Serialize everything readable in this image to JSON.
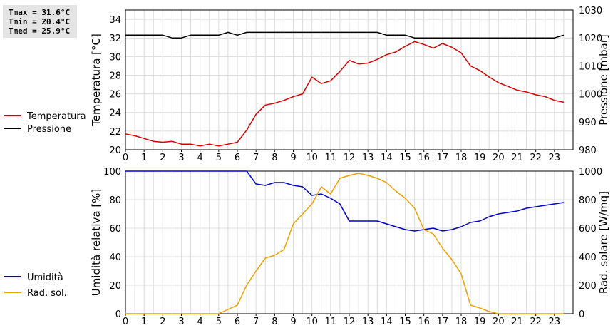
{
  "stats": {
    "tmax": "Tmax = 31.6°C",
    "tmin": "Tmin = 20.4°C",
    "tmed": "Tmed = 25.9°C"
  },
  "chart_data": [
    {
      "type": "line",
      "xlim": [
        0,
        24
      ],
      "x_ticks": [
        "0",
        "1",
        "2",
        "3",
        "4",
        "5",
        "6",
        "7",
        "8",
        "9",
        "10",
        "11",
        "12",
        "13",
        "14",
        "15",
        "16",
        "17",
        "18",
        "19",
        "20",
        "21",
        "22",
        "23"
      ],
      "ylabel": "Temperatura [°C]",
      "ylim": [
        20,
        35
      ],
      "y_ticks": [
        20,
        22,
        24,
        26,
        28,
        30,
        32,
        34
      ],
      "y2label": "Pressione [mbar]",
      "y2lim": [
        980,
        1030
      ],
      "y2_ticks": [
        980,
        990,
        1000,
        1010,
        1020,
        1030
      ],
      "grid": true,
      "legend_position": "left-outside",
      "series": [
        {
          "name": "Temperatura",
          "color": "#d40000",
          "axis": "left",
          "x": [
            0,
            0.5,
            1,
            1.5,
            2,
            2.5,
            3,
            3.5,
            4,
            4.5,
            5,
            5.5,
            6,
            6.5,
            7,
            7.5,
            8,
            8.5,
            9,
            9.5,
            10,
            10.5,
            11,
            11.5,
            12,
            12.5,
            13,
            13.5,
            14,
            14.5,
            15,
            15.5,
            16,
            16.5,
            17,
            17.5,
            18,
            18.5,
            19,
            19.5,
            20,
            20.5,
            21,
            21.5,
            22,
            22.5,
            23,
            23.5
          ],
          "values": [
            21.7,
            21.5,
            21.2,
            20.9,
            20.8,
            20.9,
            20.6,
            20.6,
            20.4,
            20.6,
            20.4,
            20.6,
            20.8,
            22.1,
            23.8,
            24.8,
            25.0,
            25.3,
            25.7,
            26.0,
            27.8,
            27.1,
            27.4,
            28.4,
            29.6,
            29.2,
            29.3,
            29.7,
            30.2,
            30.5,
            31.1,
            31.6,
            31.3,
            30.9,
            31.4,
            31.0,
            30.4,
            29.0,
            28.5,
            27.8,
            27.2,
            26.8,
            26.4,
            26.2,
            25.9,
            25.7,
            25.3,
            25.1
          ]
        },
        {
          "name": "Pressione",
          "color": "#000000",
          "axis": "right",
          "x": [
            0,
            0.5,
            1,
            1.5,
            2,
            2.5,
            3,
            3.5,
            4,
            4.5,
            5,
            5.5,
            6,
            6.5,
            7,
            7.5,
            8,
            8.5,
            9,
            9.5,
            10,
            10.5,
            11,
            11.5,
            12,
            12.5,
            13,
            13.5,
            14,
            14.5,
            15,
            15.5,
            16,
            16.5,
            17,
            17.5,
            18,
            18.5,
            19,
            19.5,
            20,
            20.5,
            21,
            21.5,
            22,
            22.5,
            23,
            23.5
          ],
          "values": [
            1021,
            1021,
            1021,
            1021,
            1021,
            1020,
            1020,
            1021,
            1021,
            1021,
            1021,
            1022,
            1021,
            1022,
            1022,
            1022,
            1022,
            1022,
            1022,
            1022,
            1022,
            1022,
            1022,
            1022,
            1022,
            1022,
            1022,
            1022,
            1021,
            1021,
            1021,
            1020,
            1020,
            1020,
            1020,
            1020,
            1020,
            1020,
            1020,
            1020,
            1020,
            1020,
            1020,
            1020,
            1020,
            1020,
            1020,
            1021
          ]
        }
      ]
    },
    {
      "type": "line",
      "xlim": [
        0,
        24
      ],
      "x_ticks": [
        "0",
        "1",
        "2",
        "3",
        "4",
        "5",
        "6",
        "7",
        "8",
        "9",
        "10",
        "11",
        "12",
        "13",
        "14",
        "15",
        "16",
        "17",
        "18",
        "19",
        "20",
        "21",
        "22",
        "23"
      ],
      "ylabel": "Umidità relativa [%]",
      "ylim": [
        0,
        100
      ],
      "y_ticks": [
        0,
        20,
        40,
        60,
        80,
        100
      ],
      "y2label": "Rad. solare [W/mq]",
      "y2lim": [
        0,
        1000
      ],
      "y2_ticks": [
        0,
        200,
        400,
        600,
        800,
        1000
      ],
      "grid": true,
      "legend_position": "left-outside",
      "series": [
        {
          "name": "Umidità",
          "color": "#0000c8",
          "axis": "left",
          "x": [
            0,
            0.5,
            1,
            1.5,
            2,
            2.5,
            3,
            3.5,
            4,
            4.5,
            5,
            5.5,
            6,
            6.5,
            7,
            7.5,
            8,
            8.5,
            9,
            9.5,
            10,
            10.5,
            11,
            11.5,
            12,
            12.5,
            13,
            13.5,
            14,
            14.5,
            15,
            15.5,
            16,
            16.5,
            17,
            17.5,
            18,
            18.5,
            19,
            19.5,
            20,
            20.5,
            21,
            21.5,
            22,
            22.5,
            23,
            23.5
          ],
          "values": [
            100,
            100,
            100,
            100,
            100,
            100,
            100,
            100,
            100,
            100,
            100,
            100,
            100,
            100,
            91,
            90,
            92,
            92,
            90,
            89,
            83,
            84,
            81,
            77,
            65,
            65,
            65,
            65,
            63,
            61,
            59,
            58,
            59,
            60,
            58,
            59,
            61,
            64,
            65,
            68,
            70,
            71,
            72,
            74,
            75,
            76,
            77,
            78
          ]
        },
        {
          "name": "Rad. sol.",
          "color": "#f0a000",
          "axis": "right",
          "x": [
            0,
            0.5,
            1,
            1.5,
            2,
            2.5,
            3,
            3.5,
            4,
            4.5,
            5,
            5.5,
            6,
            6.5,
            7,
            7.5,
            8,
            8.5,
            9,
            9.5,
            10,
            10.5,
            11,
            11.5,
            12,
            12.5,
            13,
            13.5,
            14,
            14.5,
            15,
            15.5,
            16,
            16.5,
            17,
            17.5,
            18,
            18.5,
            19,
            19.5,
            20,
            20.5,
            21,
            21.5,
            22,
            22.5,
            23,
            23.5
          ],
          "values": [
            0,
            0,
            0,
            0,
            0,
            0,
            0,
            0,
            0,
            0,
            0,
            30,
            60,
            200,
            300,
            390,
            410,
            450,
            630,
            700,
            770,
            890,
            840,
            950,
            970,
            985,
            970,
            950,
            920,
            860,
            810,
            740,
            590,
            560,
            460,
            380,
            280,
            60,
            40,
            15,
            0,
            0,
            0,
            0,
            0,
            0,
            0,
            0
          ]
        }
      ]
    }
  ]
}
